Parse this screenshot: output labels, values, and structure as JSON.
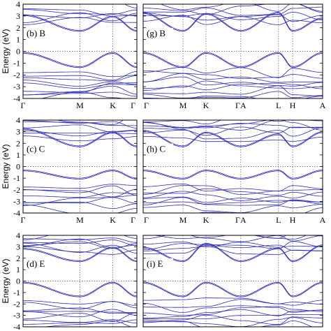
{
  "chart_data": [
    {
      "id": "b",
      "type": "line",
      "panel_label": "(b) B",
      "ylabel": "Energy (eV)",
      "ylim": [
        -4,
        4
      ],
      "yticks": [
        -4,
        -3,
        -2,
        -1,
        0,
        1,
        2,
        3,
        4
      ],
      "kpath": [
        "Γ",
        "M",
        "K",
        "Γ"
      ],
      "kpos": [
        0,
        0.5,
        0.789,
        1.0
      ],
      "kpath_labels": [
        "Γ",
        "M",
        "K",
        "Γ"
      ],
      "grid_lines": "dotted at high-symmetry points and E=0",
      "bands_approx": {
        "conduction_min_eV": 1.7,
        "conduction_min_at": "K",
        "valence_max_eV": -0.1,
        "valence_max_at": "Γ",
        "valence_min_top_eV": -1.3
      }
    },
    {
      "id": "g",
      "type": "line",
      "panel_label": "(g) B",
      "ylim": [
        -4,
        4
      ],
      "kpath": [
        "Γ",
        "M",
        "K",
        "ΓA",
        "L",
        "H",
        "A"
      ],
      "kpos": [
        0,
        0.222,
        0.35,
        0.544,
        0.754,
        0.833,
        1.0
      ],
      "kpath_labels": [
        "Γ",
        "M",
        "K",
        "ΓA",
        "L",
        "H",
        "A"
      ],
      "bands_approx": {
        "conduction_min_eV": 1.7,
        "valence_max_eV": -0.1,
        "valence_min_top_eV": -1.3
      }
    },
    {
      "id": "c",
      "type": "line",
      "panel_label": "(c) C",
      "ylabel": "Energy (eV)",
      "ylim": [
        -4,
        4
      ],
      "yticks": [
        -4,
        -3,
        -2,
        -1,
        0,
        1,
        2,
        3,
        4
      ],
      "kpath": [
        "Γ",
        "M",
        "K",
        "Γ"
      ],
      "kpos": [
        0,
        0.5,
        0.789,
        1.0
      ],
      "kpath_labels": [
        "Γ",
        "M",
        "K",
        "Γ"
      ],
      "bands_approx": {
        "conduction_min_eV": 1.7,
        "valence_max_eV": -0.3,
        "valence_min_top_eV": -1.0
      }
    },
    {
      "id": "h",
      "type": "line",
      "panel_label": "(h) C",
      "ylim": [
        -4,
        4
      ],
      "kpath": [
        "Γ",
        "M",
        "K",
        "ΓA",
        "L",
        "H",
        "A"
      ],
      "kpos": [
        0,
        0.222,
        0.35,
        0.544,
        0.754,
        0.833,
        1.0
      ],
      "kpath_labels": [
        "Γ",
        "M",
        "K",
        "ΓA",
        "L",
        "H",
        "A"
      ],
      "bands_approx": {
        "conduction_min_eV": 1.7,
        "valence_max_eV": -0.3,
        "valence_min_top_eV": -1.0
      }
    },
    {
      "id": "d",
      "type": "line",
      "panel_label": "(d) E",
      "ylabel": "Energy (eV)",
      "ylim": [
        -4,
        4
      ],
      "yticks": [
        -4,
        -3,
        -2,
        -1,
        0,
        1,
        2,
        3,
        4
      ],
      "kpath": [
        "Γ",
        "M",
        "K",
        "Γ"
      ],
      "kpos": [
        0,
        0.5,
        0.789,
        1.0
      ],
      "kpath_labels": [],
      "bands_approx": {
        "conduction_min_eV": 1.7,
        "valence_max_eV": -0.1,
        "valence_min_top_eV": -1.3
      }
    },
    {
      "id": "i",
      "type": "line",
      "panel_label": "(i) E",
      "ylim": [
        -4,
        4
      ],
      "kpath": [
        "Γ",
        "M",
        "K",
        "ΓA",
        "L",
        "H",
        "A"
      ],
      "kpos": [
        0,
        0.222,
        0.35,
        0.544,
        0.754,
        0.833,
        1.0
      ],
      "kpath_labels": [],
      "bands_approx": {
        "conduction_min_eV": 1.7,
        "valence_max_eV": -0.1,
        "valence_min_top_eV": -1.3
      }
    }
  ],
  "colors": {
    "band": "#2b2bb8",
    "frame": "#000000",
    "guide": "#555555"
  }
}
